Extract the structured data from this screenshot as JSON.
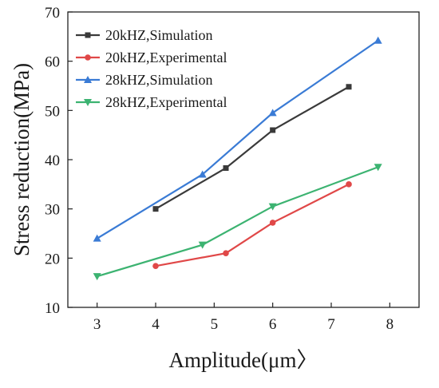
{
  "chart_data": {
    "type": "line",
    "xlabel": "Amplitude(μm〉",
    "ylabel": "Stress reduction(MPa)",
    "xlim": [
      2.5,
      8.5
    ],
    "ylim": [
      10,
      70
    ],
    "x_ticks": [
      "3",
      "4",
      "5",
      "6",
      "7",
      "8"
    ],
    "y_ticks": [
      "10",
      "20",
      "30",
      "40",
      "50",
      "60",
      "70"
    ],
    "grid": false,
    "legend_position": "top-left",
    "series": [
      {
        "name": "20kHZ,Simulation",
        "color": "#3a3a3a",
        "marker": "square",
        "points": [
          [
            4.0,
            30.0
          ],
          [
            5.2,
            38.3
          ],
          [
            6.0,
            46.0
          ],
          [
            7.3,
            54.8
          ]
        ]
      },
      {
        "name": "20kHZ,Experimental",
        "color": "#e04848",
        "marker": "circle",
        "points": [
          [
            4.0,
            18.4
          ],
          [
            5.2,
            21.0
          ],
          [
            6.0,
            27.2
          ],
          [
            7.3,
            35.0
          ]
        ]
      },
      {
        "name": "28kHZ,Simulation",
        "color": "#3a7bd5",
        "marker": "triangle-up",
        "points": [
          [
            3.0,
            24.0
          ],
          [
            4.8,
            37.0
          ],
          [
            6.0,
            49.5
          ],
          [
            7.8,
            64.2
          ]
        ]
      },
      {
        "name": "28kHZ,Experimental",
        "color": "#3cb371",
        "marker": "triangle-down",
        "points": [
          [
            3.0,
            16.3
          ],
          [
            4.8,
            22.7
          ],
          [
            6.0,
            30.5
          ],
          [
            7.8,
            38.5
          ]
        ]
      }
    ]
  }
}
